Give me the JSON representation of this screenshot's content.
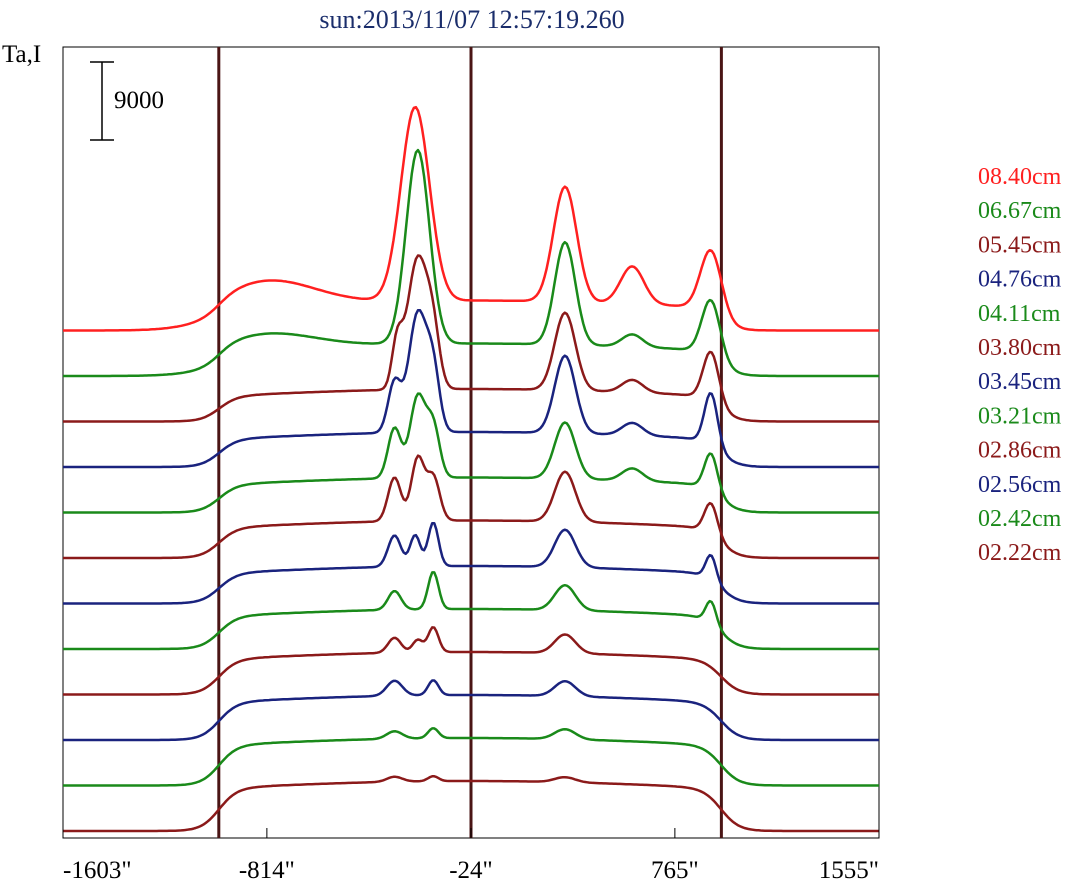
{
  "chart_data": {
    "type": "line",
    "title": "sun:2013/11/07 12:57:19.260",
    "ylabel": "Ta,I",
    "scale_bar_label": "9000",
    "scale_bar_value": 9000,
    "x_tick_labels": [
      "-1603\"",
      "-814\"",
      "-24\"",
      "765\"",
      "1555\""
    ],
    "x_ticks": [
      -1603,
      -814,
      -24,
      765,
      1555
    ],
    "xlim": [
      -1603,
      1555
    ],
    "vlines": [
      -1000,
      -24,
      945
    ],
    "grid": false,
    "legend_position": "right",
    "series": [
      {
        "name": "08.40cm",
        "color": "#ff2020",
        "offset": 13,
        "peaks": [
          [
            -810,
            0.2,
            180
          ],
          [
            -240,
            1.55,
            55
          ],
          [
            340,
            0.92,
            45
          ],
          [
            600,
            0.3,
            45
          ],
          [
            905,
            0.5,
            40
          ]
        ],
        "plateau": 0.18,
        "limb_dip": 0
      },
      {
        "name": "06.67cm",
        "color": "#1a8a1a",
        "offset": 12,
        "peaks": [
          [
            -810,
            0.12,
            180
          ],
          [
            -230,
            1.55,
            45
          ],
          [
            340,
            0.82,
            40
          ],
          [
            600,
            0.1,
            40
          ],
          [
            905,
            0.45,
            35
          ]
        ],
        "plateau": 0.2,
        "limb_dip": 0
      },
      {
        "name": "05.45cm",
        "color": "#8b1a1a",
        "offset": 11,
        "peaks": [
          [
            -310,
            0.35,
            20
          ],
          [
            -230,
            1.05,
            40
          ],
          [
            -170,
            0.35,
            25
          ],
          [
            340,
            0.62,
            40
          ],
          [
            600,
            0.1,
            40
          ],
          [
            905,
            0.4,
            30
          ]
        ],
        "plateau": 0.2,
        "limb_dip": 0
      },
      {
        "name": "04.76cm",
        "color": "#1a237e",
        "offset": 10,
        "peaks": [
          [
            -320,
            0.4,
            25
          ],
          [
            -230,
            0.95,
            35
          ],
          [
            -170,
            0.45,
            25
          ],
          [
            340,
            0.62,
            40
          ],
          [
            600,
            0.1,
            40
          ],
          [
            905,
            0.42,
            25
          ]
        ],
        "plateau": 0.22,
        "limb_dip": 0
      },
      {
        "name": "04.11cm",
        "color": "#1a8a1a",
        "offset": 9,
        "peaks": [
          [
            -320,
            0.4,
            25
          ],
          [
            -230,
            0.65,
            30
          ],
          [
            -170,
            0.4,
            25
          ],
          [
            340,
            0.45,
            40
          ],
          [
            600,
            0.1,
            40
          ],
          [
            905,
            0.3,
            25
          ]
        ],
        "plateau": 0.22,
        "limb_dip": 0
      },
      {
        "name": "03.80cm",
        "color": "#8b1a1a",
        "offset": 8,
        "peaks": [
          [
            -320,
            0.35,
            25
          ],
          [
            -230,
            0.5,
            25
          ],
          [
            -170,
            0.35,
            25
          ],
          [
            340,
            0.4,
            40
          ],
          [
            905,
            0.25,
            25
          ]
        ],
        "plateau": 0.24,
        "limb_dip": 0
      },
      {
        "name": "03.45cm",
        "color": "#1a237e",
        "offset": 7,
        "peaks": [
          [
            -320,
            0.25,
            25
          ],
          [
            -240,
            0.25,
            20
          ],
          [
            -170,
            0.35,
            20
          ],
          [
            340,
            0.3,
            40
          ],
          [
            905,
            0.2,
            20
          ]
        ],
        "plateau": 0.24,
        "limb_dip": 0
      },
      {
        "name": "03.21cm",
        "color": "#1a8a1a",
        "offset": 6,
        "peaks": [
          [
            -320,
            0.15,
            25
          ],
          [
            -170,
            0.3,
            20
          ],
          [
            340,
            0.2,
            40
          ],
          [
            905,
            0.18,
            20
          ]
        ],
        "plateau": 0.26,
        "limb_dip": 0
      },
      {
        "name": "02.86cm",
        "color": "#8b1a1a",
        "offset": 5,
        "peaks": [
          [
            -320,
            0.12,
            25
          ],
          [
            -230,
            0.1,
            20
          ],
          [
            -170,
            0.2,
            20
          ],
          [
            340,
            0.15,
            40
          ]
        ],
        "plateau": 0.28,
        "limb_dip": 0
      },
      {
        "name": "02.56cm",
        "color": "#1a237e",
        "offset": 4,
        "peaks": [
          [
            -320,
            0.12,
            30
          ],
          [
            -170,
            0.12,
            20
          ],
          [
            340,
            0.12,
            40
          ]
        ],
        "plateau": 0.3,
        "limb_dip": 0
      },
      {
        "name": "02.42cm",
        "color": "#1a8a1a",
        "offset": 3,
        "peaks": [
          [
            -320,
            0.06,
            30
          ],
          [
            -170,
            0.08,
            20
          ],
          [
            340,
            0.08,
            40
          ]
        ],
        "plateau": 0.32,
        "limb_dip": 0
      },
      {
        "name": "02.22cm",
        "color": "#8b1a1a",
        "offset": 2,
        "peaks": [
          [
            -320,
            0.04,
            30
          ],
          [
            -170,
            0.04,
            20
          ],
          [
            340,
            0.04,
            40
          ]
        ],
        "plateau": 0.34,
        "limb_dip": 0
      }
    ]
  }
}
